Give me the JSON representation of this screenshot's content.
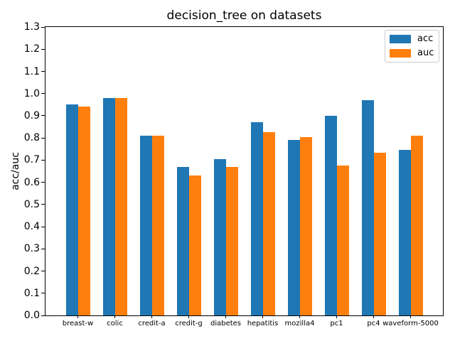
{
  "figure": {
    "title": "decision_tree on datasets"
  },
  "chart_data": {
    "type": "bar",
    "title": "decision_tree on datasets",
    "xlabel": "",
    "ylabel": "acc/auc",
    "categories": [
      "breast-w",
      "colic",
      "credit-a",
      "credit-g",
      "diabetes",
      "hepatitis",
      "mozilla4",
      "pc1",
      "pc4",
      "waveform-5000"
    ],
    "series": [
      {
        "name": "acc",
        "color": "#1f77b4",
        "values": [
          0.95,
          0.98,
          0.81,
          0.67,
          0.705,
          0.87,
          0.79,
          0.9,
          0.97,
          0.745
        ]
      },
      {
        "name": "auc",
        "color": "#ff7f0e",
        "values": [
          0.94,
          0.98,
          0.81,
          0.63,
          0.67,
          0.825,
          0.805,
          0.675,
          0.735,
          0.81
        ]
      }
    ],
    "ylim": [
      0.0,
      1.3
    ],
    "xlim": [
      -0.875,
      9.875
    ],
    "ytick_labels": [
      "0.0",
      "0.1",
      "0.2",
      "0.3",
      "0.4",
      "0.5",
      "0.6",
      "0.7",
      "0.8",
      "0.9",
      "1.0",
      "1.1",
      "1.2",
      "1.3"
    ],
    "grid": false,
    "legend_position": "upper right",
    "legend": {
      "entries": [
        "acc",
        "auc"
      ]
    }
  }
}
